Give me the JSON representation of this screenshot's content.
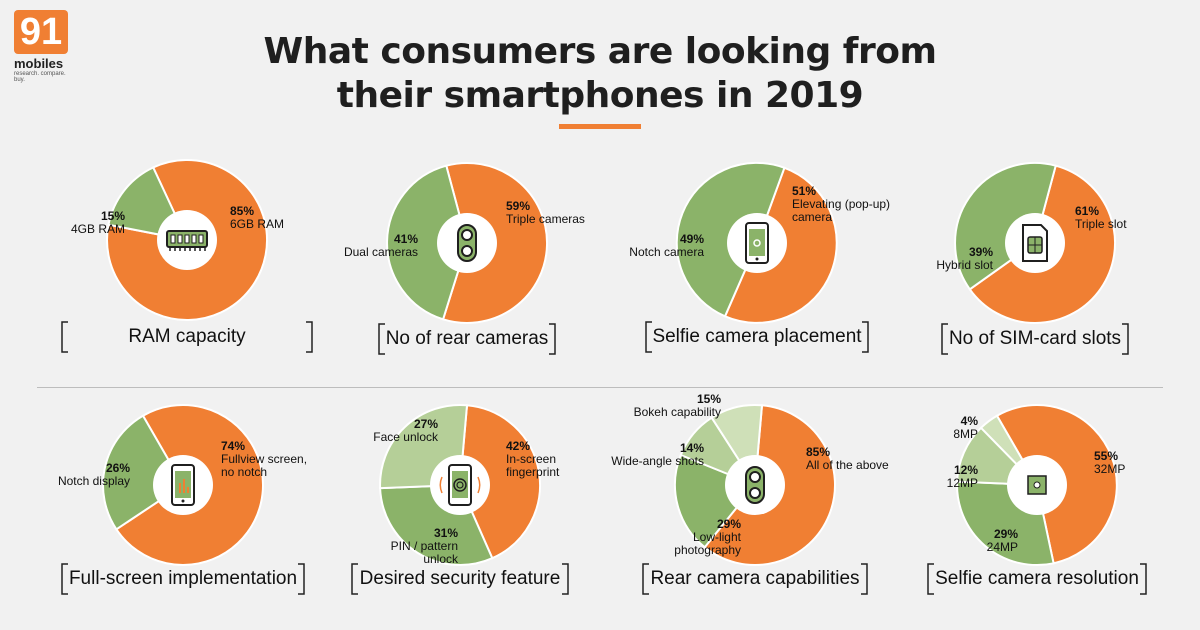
{
  "header": {
    "logo_number": "91",
    "logo_word": "mobiles",
    "logo_tagline": "research. compare. buy.",
    "title_line1": "What consumers are looking from",
    "title_line2": "their smartphones in 2019"
  },
  "colors": {
    "orange": "#f07f33",
    "green": "#8bb369",
    "light_green": "#b5cf98",
    "background": "#f1f1f1"
  },
  "chart_data": [
    {
      "type": "pie",
      "title": "RAM capacity",
      "icon": "ram-icon",
      "series": [
        {
          "pct": "85%",
          "label": "6GB RAM",
          "value": 85,
          "color": "#f07f33"
        },
        {
          "pct": "15%",
          "label": "4GB RAM",
          "value": 15,
          "color": "#8bb369"
        }
      ]
    },
    {
      "type": "pie",
      "title": "No of rear cameras",
      "icon": "dual-camera-icon",
      "series": [
        {
          "pct": "59%",
          "label": "Triple cameras",
          "value": 59,
          "color": "#f07f33"
        },
        {
          "pct": "41%",
          "label": "Dual  cameras",
          "value": 41,
          "color": "#8bb369"
        }
      ]
    },
    {
      "type": "pie",
      "title": "Selfie camera placement",
      "icon": "phone-camera-icon",
      "series": [
        {
          "pct": "51%",
          "label": "Elevating (pop-up) camera",
          "value": 51,
          "color": "#f07f33"
        },
        {
          "pct": "49%",
          "label": "Notch camera",
          "value": 49,
          "color": "#8bb369"
        }
      ]
    },
    {
      "type": "pie",
      "title": "No of SIM-card slots",
      "icon": "sim-card-icon",
      "series": [
        {
          "pct": "61%",
          "label": "Triple slot",
          "value": 61,
          "color": "#f07f33"
        },
        {
          "pct": "39%",
          "label": "Hybrid slot",
          "value": 39,
          "color": "#8bb369"
        }
      ]
    },
    {
      "type": "pie",
      "title": "Full-screen implementation",
      "icon": "phone-fullscreen-icon",
      "series": [
        {
          "pct": "74%",
          "label": "Fullview screen, no notch",
          "value": 74,
          "color": "#f07f33"
        },
        {
          "pct": "26%",
          "label": "Notch display",
          "value": 26,
          "color": "#8bb369"
        }
      ]
    },
    {
      "type": "pie",
      "title": "Desired security feature",
      "icon": "fingerprint-icon",
      "series": [
        {
          "pct": "42%",
          "label": "In-screen fingerprint",
          "value": 42,
          "color": "#f07f33"
        },
        {
          "pct": "31%",
          "label": "PIN / pattern unlock",
          "value": 31,
          "color": "#8bb369"
        },
        {
          "pct": "27%",
          "label": "Face unlock",
          "value": 27,
          "color": "#b5cf98"
        }
      ]
    },
    {
      "type": "pie",
      "title": "Rear camera capabilities",
      "icon": "dual-camera-icon",
      "series": [
        {
          "pct": "85%",
          "label": "All of the above",
          "value": 85,
          "color": "#f07f33"
        },
        {
          "pct": "29%",
          "label": "Low-light photography",
          "value": 29,
          "color": "#8bb369"
        },
        {
          "pct": "14%",
          "label": "Wide-angle shots",
          "value": 14,
          "color": "#b5cf98"
        },
        {
          "pct": "15%",
          "label": "Bokeh capability",
          "value": 15,
          "color": "#cfe0b8"
        }
      ]
    },
    {
      "type": "pie",
      "title": "Selfie camera resolution",
      "icon": "camera-focus-icon",
      "series": [
        {
          "pct": "55%",
          "label": "32MP",
          "value": 55,
          "color": "#f07f33"
        },
        {
          "pct": "29%",
          "label": "24MP",
          "value": 29,
          "color": "#8bb369"
        },
        {
          "pct": "12%",
          "label": "12MP",
          "value": 12,
          "color": "#b5cf98"
        },
        {
          "pct": "4%",
          "label": "8MP",
          "value": 4,
          "color": "#cfe0b8"
        }
      ]
    }
  ]
}
